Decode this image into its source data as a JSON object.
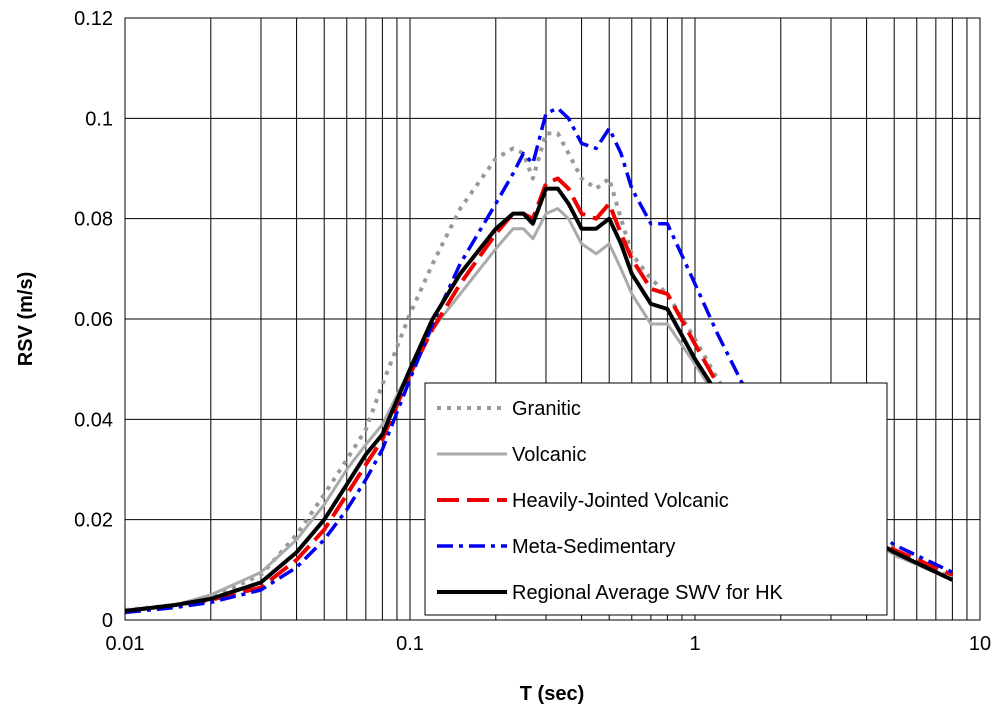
{
  "chart_data": {
    "type": "line",
    "title": "",
    "xlabel": "T (sec)",
    "ylabel": "RSV (m/s)",
    "xscale": "log",
    "xlim": [
      0.01,
      10
    ],
    "ylim": [
      0,
      0.12
    ],
    "x_ticks": [
      "0.01",
      "0.1",
      "1",
      "10"
    ],
    "y_ticks": [
      "0",
      "0.02",
      "0.04",
      "0.06",
      "0.08",
      "0.1",
      "0.12"
    ],
    "grid": true,
    "legend_position": "center-bottom",
    "series": [
      {
        "name": "Granitic",
        "color": "#999999",
        "dash": "dotted",
        "x": [
          0.01,
          0.015,
          0.02,
          0.03,
          0.04,
          0.05,
          0.06,
          0.07,
          0.08,
          0.1,
          0.12,
          0.15,
          0.2,
          0.23,
          0.25,
          0.27,
          0.3,
          0.33,
          0.36,
          0.4,
          0.45,
          0.5,
          0.55,
          0.6,
          0.7,
          0.8,
          1.0,
          1.2,
          1.5,
          2,
          3,
          5,
          8
        ],
        "y": [
          0.002,
          0.003,
          0.0045,
          0.009,
          0.017,
          0.025,
          0.032,
          0.038,
          0.047,
          0.061,
          0.071,
          0.082,
          0.092,
          0.094,
          0.093,
          0.088,
          0.097,
          0.097,
          0.093,
          0.088,
          0.086,
          0.088,
          0.08,
          0.073,
          0.068,
          0.065,
          0.056,
          0.048,
          0.04,
          0.032,
          0.022,
          0.013,
          0.0085
        ]
      },
      {
        "name": "Volcanic",
        "color": "#aaaaaa",
        "dash": "solid",
        "x": [
          0.01,
          0.015,
          0.02,
          0.03,
          0.04,
          0.05,
          0.06,
          0.07,
          0.08,
          0.1,
          0.12,
          0.15,
          0.2,
          0.23,
          0.25,
          0.27,
          0.3,
          0.33,
          0.36,
          0.4,
          0.45,
          0.5,
          0.55,
          0.6,
          0.7,
          0.8,
          1.0,
          1.2,
          1.5,
          2,
          3,
          5,
          8
        ],
        "y": [
          0.002,
          0.003,
          0.005,
          0.0095,
          0.016,
          0.023,
          0.03,
          0.035,
          0.039,
          0.05,
          0.058,
          0.065,
          0.074,
          0.078,
          0.078,
          0.076,
          0.081,
          0.082,
          0.08,
          0.075,
          0.073,
          0.075,
          0.07,
          0.065,
          0.059,
          0.059,
          0.051,
          0.044,
          0.037,
          0.029,
          0.021,
          0.013,
          0.008
        ]
      },
      {
        "name": "Heavily-Jointed Volcanic",
        "color": "#ee0000",
        "dash": "dashed",
        "x": [
          0.01,
          0.015,
          0.02,
          0.03,
          0.04,
          0.05,
          0.06,
          0.07,
          0.08,
          0.1,
          0.12,
          0.15,
          0.2,
          0.23,
          0.25,
          0.27,
          0.3,
          0.33,
          0.36,
          0.4,
          0.45,
          0.5,
          0.55,
          0.6,
          0.7,
          0.8,
          1.0,
          1.2,
          1.5,
          2,
          3,
          5,
          8
        ],
        "y": [
          0.0018,
          0.003,
          0.004,
          0.0065,
          0.012,
          0.018,
          0.025,
          0.031,
          0.036,
          0.049,
          0.058,
          0.067,
          0.077,
          0.081,
          0.081,
          0.08,
          0.087,
          0.088,
          0.086,
          0.081,
          0.08,
          0.083,
          0.077,
          0.072,
          0.066,
          0.065,
          0.055,
          0.047,
          0.039,
          0.031,
          0.022,
          0.014,
          0.009
        ]
      },
      {
        "name": "Meta-Sedimentary",
        "color": "#0000ee",
        "dash": "dashdot",
        "x": [
          0.01,
          0.015,
          0.02,
          0.03,
          0.04,
          0.05,
          0.06,
          0.07,
          0.08,
          0.1,
          0.12,
          0.15,
          0.2,
          0.23,
          0.25,
          0.27,
          0.3,
          0.33,
          0.36,
          0.4,
          0.45,
          0.5,
          0.55,
          0.6,
          0.7,
          0.8,
          1.0,
          1.2,
          1.5,
          2,
          3,
          5,
          8
        ],
        "y": [
          0.0015,
          0.0025,
          0.0035,
          0.006,
          0.0105,
          0.016,
          0.022,
          0.028,
          0.034,
          0.048,
          0.059,
          0.071,
          0.083,
          0.089,
          0.093,
          0.091,
          0.101,
          0.102,
          0.1,
          0.095,
          0.094,
          0.098,
          0.093,
          0.086,
          0.079,
          0.079,
          0.067,
          0.057,
          0.046,
          0.035,
          0.024,
          0.015,
          0.0095
        ]
      },
      {
        "name": "Regional Average SWV for HK",
        "color": "#000000",
        "dash": "solid",
        "x": [
          0.01,
          0.015,
          0.02,
          0.03,
          0.04,
          0.05,
          0.06,
          0.07,
          0.08,
          0.1,
          0.12,
          0.15,
          0.2,
          0.23,
          0.25,
          0.27,
          0.3,
          0.33,
          0.36,
          0.4,
          0.45,
          0.5,
          0.55,
          0.6,
          0.7,
          0.8,
          1.0,
          1.2,
          1.5,
          2,
          3,
          5,
          8
        ],
        "y": [
          0.0018,
          0.003,
          0.0042,
          0.0075,
          0.0135,
          0.02,
          0.027,
          0.033,
          0.037,
          0.05,
          0.06,
          0.069,
          0.078,
          0.081,
          0.081,
          0.079,
          0.086,
          0.086,
          0.083,
          0.078,
          0.078,
          0.08,
          0.075,
          0.069,
          0.063,
          0.062,
          0.052,
          0.045,
          0.038,
          0.03,
          0.021,
          0.0135,
          0.008
        ]
      }
    ]
  }
}
